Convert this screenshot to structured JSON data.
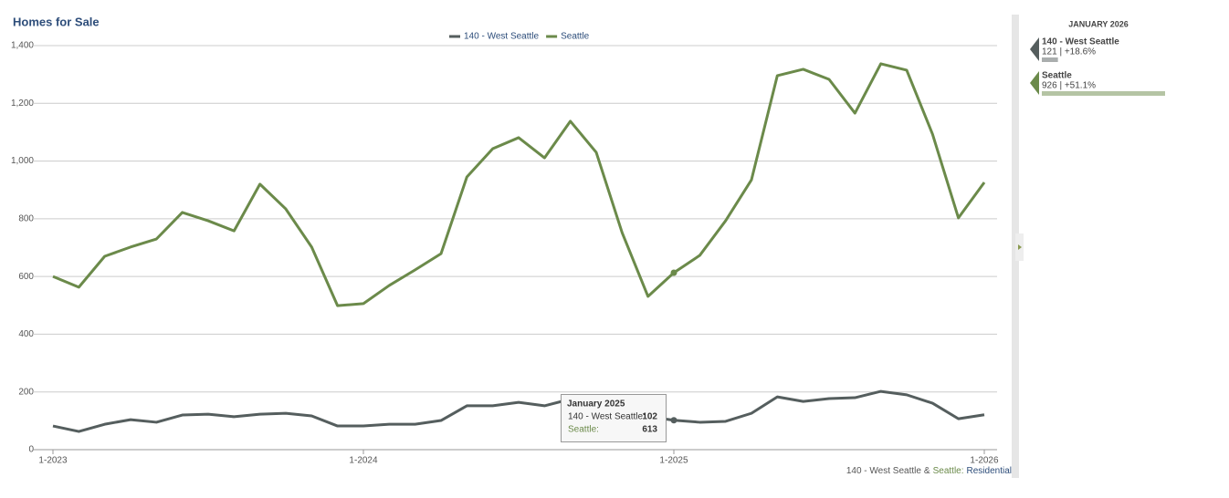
{
  "chart_data": {
    "type": "line",
    "title": "Homes for Sale",
    "categories": [
      "1-2023",
      null,
      null,
      null,
      null,
      null,
      null,
      null,
      null,
      null,
      null,
      null,
      "1-2024",
      null,
      null,
      null,
      null,
      null,
      null,
      null,
      null,
      null,
      null,
      null,
      "1-2025",
      null,
      null,
      null,
      null,
      null,
      null,
      null,
      null,
      null,
      null,
      null,
      "1-2026"
    ],
    "series": [
      {
        "name": "140 - West Seattle",
        "color": "#555e5e",
        "values": [
          82,
          63,
          88,
          104,
          95,
          120,
          123,
          114,
          123,
          126,
          117,
          82,
          82,
          88,
          88,
          101,
          152,
          152,
          164,
          152,
          175,
          165,
          140,
          115,
          102,
          95,
          98,
          126,
          183,
          167,
          177,
          180,
          202,
          190,
          161,
          107,
          121
        ]
      },
      {
        "name": "Seattle",
        "color": "#6b8a4a",
        "values": [
          600,
          563,
          670,
          702,
          730,
          822,
          793,
          758,
          920,
          834,
          702,
          499,
          506,
          569,
          623,
          679,
          945,
          1043,
          1081,
          1011,
          1138,
          1030,
          752,
          531,
          613,
          673,
          793,
          935,
          1296,
          1318,
          1283,
          1166,
          1337,
          1315,
          1093,
          803,
          926
        ]
      }
    ],
    "ylim": [
      0,
      1400
    ],
    "yticks": [
      0,
      200,
      400,
      600,
      800,
      {
        "value": 1000,
        "label": "1,000"
      },
      {
        "value": 1200,
        "label": "1,200"
      },
      {
        "value": 1400,
        "label": "1,400"
      }
    ],
    "grid": true,
    "legend": "top",
    "tooltip": {
      "title": "January 2025",
      "index": 24,
      "labels": [
        "140 - West Seattle:",
        "Seattle:"
      ]
    },
    "summary": {
      "title": "JANUARY 2026",
      "index": 36,
      "value_labels": [
        "121 | +18.6%",
        "926 | +51.1%"
      ]
    },
    "source": [
      "140 - West Seattle",
      "&",
      "Seattle:",
      "Residential"
    ]
  }
}
